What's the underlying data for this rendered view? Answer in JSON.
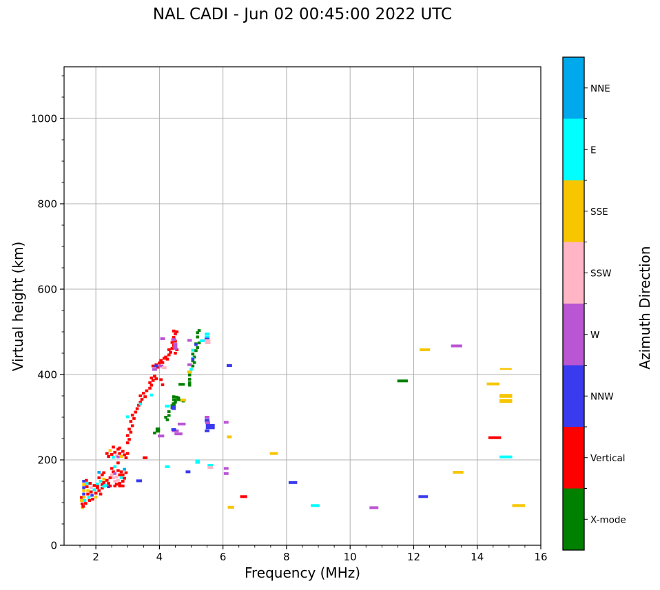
{
  "title": "NAL CADI - Jun 02 00:45:00 2022 UTC",
  "chart_data": {
    "type": "scatter",
    "title": "NAL CADI - Jun 02 00:45:00 2022 UTC",
    "xlabel": "Frequency (MHz)",
    "ylabel": "Virtual height (km)",
    "xlim": [
      1,
      16
    ],
    "ylim": [
      0,
      1121
    ],
    "x_major_ticks": [
      2,
      4,
      6,
      8,
      10,
      12,
      14,
      16
    ],
    "x_minor_step": 0.5,
    "y_major_ticks": [
      0,
      200,
      400,
      600,
      800,
      1000
    ],
    "y_minor_step": 50,
    "grid": true,
    "grid_color": "#b0b0b0",
    "frame_color": "#000000",
    "colorbar": {
      "label": "Azimuth Direction",
      "categories_top_to_bottom": [
        {
          "key": "NNE",
          "label": "NNE",
          "color": "#00A8EC"
        },
        {
          "key": "E",
          "label": "E",
          "color": "#00FFFF"
        },
        {
          "key": "SSE",
          "label": "SSE",
          "color": "#F7C600"
        },
        {
          "key": "SSW",
          "label": "SSW",
          "color": "#FFB5C5"
        },
        {
          "key": "W",
          "label": "W",
          "color": "#BA55D3"
        },
        {
          "key": "NNW",
          "label": "NNW",
          "color": "#3A3AEE"
        },
        {
          "key": "V",
          "label": "Vertical",
          "color": "#FE0000"
        },
        {
          "key": "X",
          "label": "X-mode",
          "color": "#008000"
        }
      ]
    },
    "marker": {
      "width_mhz": 0.1,
      "height_km": 6.5
    },
    "points_format": "[freq_MHz, virtual_height_km, azimuth_key, width_MHz?, height_km?]",
    "points": [
      [
        1.58,
        88,
        "SSE"
      ],
      [
        1.55,
        112,
        "V"
      ],
      [
        1.55,
        105,
        "SSE"
      ],
      [
        1.57,
        97,
        "V"
      ],
      [
        1.6,
        91,
        "V"
      ],
      [
        1.62,
        150,
        "NNW"
      ],
      [
        1.62,
        142,
        "SSE"
      ],
      [
        1.62,
        135,
        "NNW"
      ],
      [
        1.62,
        128,
        "SSE"
      ],
      [
        1.62,
        120,
        "NNW"
      ],
      [
        1.63,
        113,
        "SSE"
      ],
      [
        1.65,
        105,
        "E"
      ],
      [
        1.68,
        98,
        "V"
      ],
      [
        1.7,
        152,
        "V"
      ],
      [
        1.72,
        145,
        "E"
      ],
      [
        1.72,
        137,
        "V"
      ],
      [
        1.75,
        128,
        "SSE"
      ],
      [
        1.75,
        120,
        "V"
      ],
      [
        1.78,
        112,
        "E"
      ],
      [
        1.8,
        105,
        "V"
      ],
      [
        1.82,
        145,
        "V"
      ],
      [
        1.85,
        135,
        "SSW"
      ],
      [
        1.85,
        125,
        "V"
      ],
      [
        1.88,
        117,
        "NNW"
      ],
      [
        1.9,
        108,
        "V"
      ],
      [
        1.95,
        140,
        "V"
      ],
      [
        1.95,
        130,
        "E"
      ],
      [
        2.0,
        122,
        "V"
      ],
      [
        2.0,
        113,
        "SSE"
      ],
      [
        2.05,
        143,
        "E"
      ],
      [
        2.05,
        135,
        "V"
      ],
      [
        2.1,
        128,
        "V"
      ],
      [
        2.15,
        120,
        "V"
      ],
      [
        2.1,
        158,
        "V"
      ],
      [
        2.15,
        150,
        "E"
      ],
      [
        2.2,
        142,
        "V"
      ],
      [
        2.2,
        134,
        "V"
      ],
      [
        2.25,
        155,
        "SSE"
      ],
      [
        2.25,
        147,
        "V"
      ],
      [
        2.3,
        140,
        "E"
      ],
      [
        2.35,
        152,
        "V"
      ],
      [
        2.4,
        145,
        "V"
      ],
      [
        2.4,
        137,
        "NNW"
      ],
      [
        2.45,
        158,
        "V"
      ],
      [
        2.2,
        165,
        "V"
      ],
      [
        2.1,
        171,
        "NNE"
      ],
      [
        2.25,
        170,
        "V"
      ],
      [
        2.05,
        138,
        "V"
      ],
      [
        2.25,
        138,
        "E"
      ],
      [
        2.45,
        139,
        "V"
      ],
      [
        2.6,
        139,
        "V"
      ],
      [
        2.75,
        139,
        "V"
      ],
      [
        2.85,
        139,
        "V"
      ],
      [
        2.5,
        180,
        "V"
      ],
      [
        2.55,
        172,
        "V"
      ],
      [
        2.5,
        165,
        "SSW"
      ],
      [
        2.55,
        158,
        "SSW"
      ],
      [
        2.6,
        168,
        "W"
      ],
      [
        2.6,
        150,
        "SSW"
      ],
      [
        2.65,
        160,
        "SSW"
      ],
      [
        2.65,
        143,
        "V"
      ],
      [
        2.7,
        175,
        "V"
      ],
      [
        2.7,
        152,
        "SSW"
      ],
      [
        2.75,
        165,
        "V"
      ],
      [
        2.75,
        145,
        "V"
      ],
      [
        2.8,
        158,
        "E"
      ],
      [
        2.8,
        172,
        "V"
      ],
      [
        2.85,
        150,
        "V"
      ],
      [
        2.85,
        165,
        "V"
      ],
      [
        2.9,
        157,
        "V"
      ],
      [
        2.9,
        178,
        "NNE"
      ],
      [
        2.95,
        170,
        "V"
      ],
      [
        2.7,
        193,
        "V"
      ],
      [
        2.6,
        184,
        "E"
      ],
      [
        3.36,
        151,
        "NNW",
        0.18
      ],
      [
        3.55,
        205,
        "V",
        0.15
      ],
      [
        2.35,
        215,
        "V"
      ],
      [
        2.4,
        208,
        "V"
      ],
      [
        2.45,
        222,
        "SSE"
      ],
      [
        2.5,
        213,
        "V"
      ],
      [
        2.55,
        206,
        "E"
      ],
      [
        2.6,
        218,
        "V"
      ],
      [
        2.65,
        210,
        "SSW"
      ],
      [
        2.7,
        225,
        "V"
      ],
      [
        2.7,
        207,
        "W"
      ],
      [
        2.75,
        215,
        "V"
      ],
      [
        2.8,
        208,
        "SSE"
      ],
      [
        2.85,
        220,
        "V"
      ],
      [
        2.9,
        212,
        "V"
      ],
      [
        2.95,
        205,
        "V"
      ],
      [
        3.0,
        215,
        "V"
      ],
      [
        2.55,
        230,
        "V"
      ],
      [
        2.75,
        228,
        "V"
      ],
      [
        3.0,
        240,
        "V"
      ],
      [
        3.05,
        248,
        "V"
      ],
      [
        3.0,
        257,
        "V"
      ],
      [
        3.1,
        265,
        "V"
      ],
      [
        3.05,
        272,
        "V"
      ],
      [
        3.15,
        280,
        "V"
      ],
      [
        3.1,
        290,
        "V"
      ],
      [
        3.2,
        297,
        "V"
      ],
      [
        3.15,
        305,
        "V"
      ],
      [
        3.25,
        312,
        "V"
      ],
      [
        3.3,
        320,
        "V"
      ],
      [
        3.35,
        328,
        "V"
      ],
      [
        3.45,
        342,
        "V"
      ],
      [
        3.4,
        335,
        "V"
      ],
      [
        3.4,
        350,
        "V"
      ],
      [
        3.5,
        356,
        "V"
      ],
      [
        3.55,
        348,
        "V"
      ],
      [
        3.6,
        362,
        "V"
      ],
      [
        3.7,
        368,
        "V"
      ],
      [
        3.75,
        375,
        "V"
      ],
      [
        3.7,
        381,
        "V"
      ],
      [
        3.8,
        386,
        "V"
      ],
      [
        3.75,
        392,
        "V"
      ],
      [
        3.85,
        396,
        "V"
      ],
      [
        3.9,
        390,
        "V"
      ],
      [
        4.05,
        388,
        "V"
      ],
      [
        4.1,
        376,
        "V"
      ],
      [
        3.8,
        420,
        "V"
      ],
      [
        3.9,
        423,
        "V"
      ],
      [
        3.95,
        417,
        "V"
      ],
      [
        4.0,
        427,
        "V"
      ],
      [
        4.05,
        433,
        "V"
      ],
      [
        4.1,
        428,
        "V"
      ],
      [
        4.15,
        438,
        "V"
      ],
      [
        4.2,
        441,
        "V"
      ],
      [
        4.25,
        436,
        "V"
      ],
      [
        4.3,
        446,
        "V"
      ],
      [
        4.35,
        452,
        "V"
      ],
      [
        4.3,
        458,
        "V"
      ],
      [
        4.4,
        461,
        "V"
      ],
      [
        4.45,
        468,
        "V"
      ],
      [
        4.4,
        475,
        "V"
      ],
      [
        4.5,
        478,
        "V"
      ],
      [
        4.45,
        487,
        "V"
      ],
      [
        4.5,
        495,
        "V"
      ],
      [
        4.55,
        500,
        "V"
      ],
      [
        4.45,
        502,
        "V"
      ],
      [
        4.55,
        458,
        "V"
      ],
      [
        4.5,
        450,
        "V"
      ],
      [
        3.0,
        301,
        "E"
      ],
      [
        3.4,
        331,
        "E"
      ],
      [
        3.75,
        352,
        "E"
      ],
      [
        4.1,
        484,
        "W",
        0.15
      ],
      [
        4.45,
        482,
        "W",
        0.15
      ],
      [
        4.5,
        466,
        "W",
        0.13,
        16
      ],
      [
        3.85,
        412,
        "W",
        0.15
      ],
      [
        4.05,
        420,
        "W",
        0.15
      ],
      [
        4.15,
        416,
        "SSW",
        0.15
      ],
      [
        3.9,
        420,
        "NNW",
        0.12
      ],
      [
        3.85,
        263,
        "X"
      ],
      [
        3.95,
        270,
        "X",
        0.14,
        12
      ],
      [
        4.2,
        300,
        "X"
      ],
      [
        4.25,
        294,
        "X"
      ],
      [
        4.3,
        304,
        "X"
      ],
      [
        4.3,
        313,
        "X"
      ],
      [
        4.4,
        322,
        "X"
      ],
      [
        4.45,
        330,
        "X",
        0.12,
        10
      ],
      [
        4.4,
        327,
        "X"
      ],
      [
        4.45,
        341,
        "X"
      ],
      [
        4.5,
        335,
        "X"
      ],
      [
        4.45,
        348,
        "X"
      ],
      [
        4.55,
        347,
        "X"
      ],
      [
        4.5,
        340,
        "X"
      ],
      [
        4.6,
        341,
        "X"
      ],
      [
        4.6,
        345,
        "X"
      ],
      [
        4.7,
        340,
        "X"
      ],
      [
        4.75,
        338,
        "X"
      ],
      [
        4.7,
        377,
        "X",
        0.2
      ],
      [
        4.95,
        375,
        "X"
      ],
      [
        4.95,
        381,
        "X"
      ],
      [
        4.95,
        389,
        "X"
      ],
      [
        4.95,
        399,
        "X"
      ],
      [
        5.05,
        420,
        "X"
      ],
      [
        5.1,
        428,
        "X"
      ],
      [
        5.05,
        432,
        "X"
      ],
      [
        5.1,
        441,
        "X"
      ],
      [
        5.05,
        448,
        "X"
      ],
      [
        5.15,
        456,
        "X"
      ],
      [
        5.2,
        463,
        "X"
      ],
      [
        5.15,
        472,
        "X"
      ],
      [
        5.25,
        474,
        "X"
      ],
      [
        5.2,
        488,
        "X"
      ],
      [
        5.2,
        498,
        "X"
      ],
      [
        5.25,
        503,
        "X"
      ],
      [
        4.75,
        340,
        "SSE",
        0.18
      ],
      [
        4.95,
        406,
        "SSE",
        0.15
      ],
      [
        4.25,
        326,
        "E",
        0.15
      ],
      [
        5.0,
        412,
        "E"
      ],
      [
        5.05,
        457,
        "E"
      ],
      [
        5.35,
        479,
        "E",
        0.15
      ],
      [
        5.5,
        495,
        "E",
        0.15
      ],
      [
        5.5,
        488,
        "E",
        0.15
      ],
      [
        5.05,
        438,
        "E"
      ],
      [
        4.45,
        322,
        "NNW",
        0.13,
        10
      ],
      [
        5.05,
        436,
        "NNW"
      ],
      [
        5.15,
        470,
        "NNW"
      ],
      [
        5.5,
        483,
        "NNW",
        0.15
      ],
      [
        5.52,
        477,
        "SSW",
        0.17,
        12
      ],
      [
        4.95,
        423,
        "W",
        0.14
      ],
      [
        4.95,
        480,
        "W",
        0.14
      ],
      [
        5.5,
        300,
        "W",
        0.15
      ],
      [
        5.5,
        292,
        "NNW",
        0.15,
        8
      ],
      [
        5.52,
        287,
        "W",
        0.15
      ],
      [
        5.6,
        278,
        "NNW",
        0.28,
        12
      ],
      [
        5.5,
        268,
        "NNW",
        0.15
      ],
      [
        4.7,
        284,
        "W",
        0.25
      ],
      [
        4.5,
        268,
        "W",
        0.22
      ],
      [
        4.45,
        271,
        "NNW",
        0.15
      ],
      [
        4.6,
        261,
        "W",
        0.25
      ],
      [
        4.05,
        256,
        "W",
        0.2
      ],
      [
        6.1,
        288,
        "W",
        0.15
      ],
      [
        6.2,
        254,
        "SSE",
        0.15
      ],
      [
        6.2,
        421,
        "NNW",
        0.17
      ],
      [
        6.1,
        180,
        "W",
        0.15
      ],
      [
        6.1,
        168,
        "W",
        0.15
      ],
      [
        4.25,
        184,
        "E",
        0.15
      ],
      [
        4.9,
        172,
        "NNW",
        0.15
      ],
      [
        5.2,
        196,
        "E",
        0.14,
        10
      ],
      [
        5.6,
        187,
        "E",
        0.17
      ],
      [
        5.6,
        182,
        "SSW",
        0.17
      ],
      [
        6.25,
        89,
        "SSE",
        0.2
      ],
      [
        6.65,
        114,
        "V",
        0.22
      ],
      [
        7.6,
        215,
        "SSE",
        0.25
      ],
      [
        8.2,
        147,
        "NNW",
        0.27
      ],
      [
        8.9,
        93,
        "E",
        0.28
      ],
      [
        10.75,
        88,
        "W",
        0.28
      ],
      [
        11.65,
        385,
        "X",
        0.33
      ],
      [
        12.35,
        458,
        "SSE",
        0.33
      ],
      [
        12.3,
        114,
        "NNW",
        0.3
      ],
      [
        13.35,
        467,
        "W",
        0.35
      ],
      [
        13.4,
        171,
        "SSE",
        0.33
      ],
      [
        14.5,
        378,
        "SSE",
        0.4
      ],
      [
        14.55,
        252,
        "V",
        0.4
      ],
      [
        14.9,
        413,
        "SSE",
        0.37,
        4
      ],
      [
        14.9,
        350,
        "SSE",
        0.4,
        9
      ],
      [
        14.9,
        338,
        "SSE",
        0.4,
        9
      ],
      [
        14.9,
        207,
        "E",
        0.4
      ],
      [
        15.3,
        93,
        "SSE",
        0.4
      ]
    ]
  }
}
